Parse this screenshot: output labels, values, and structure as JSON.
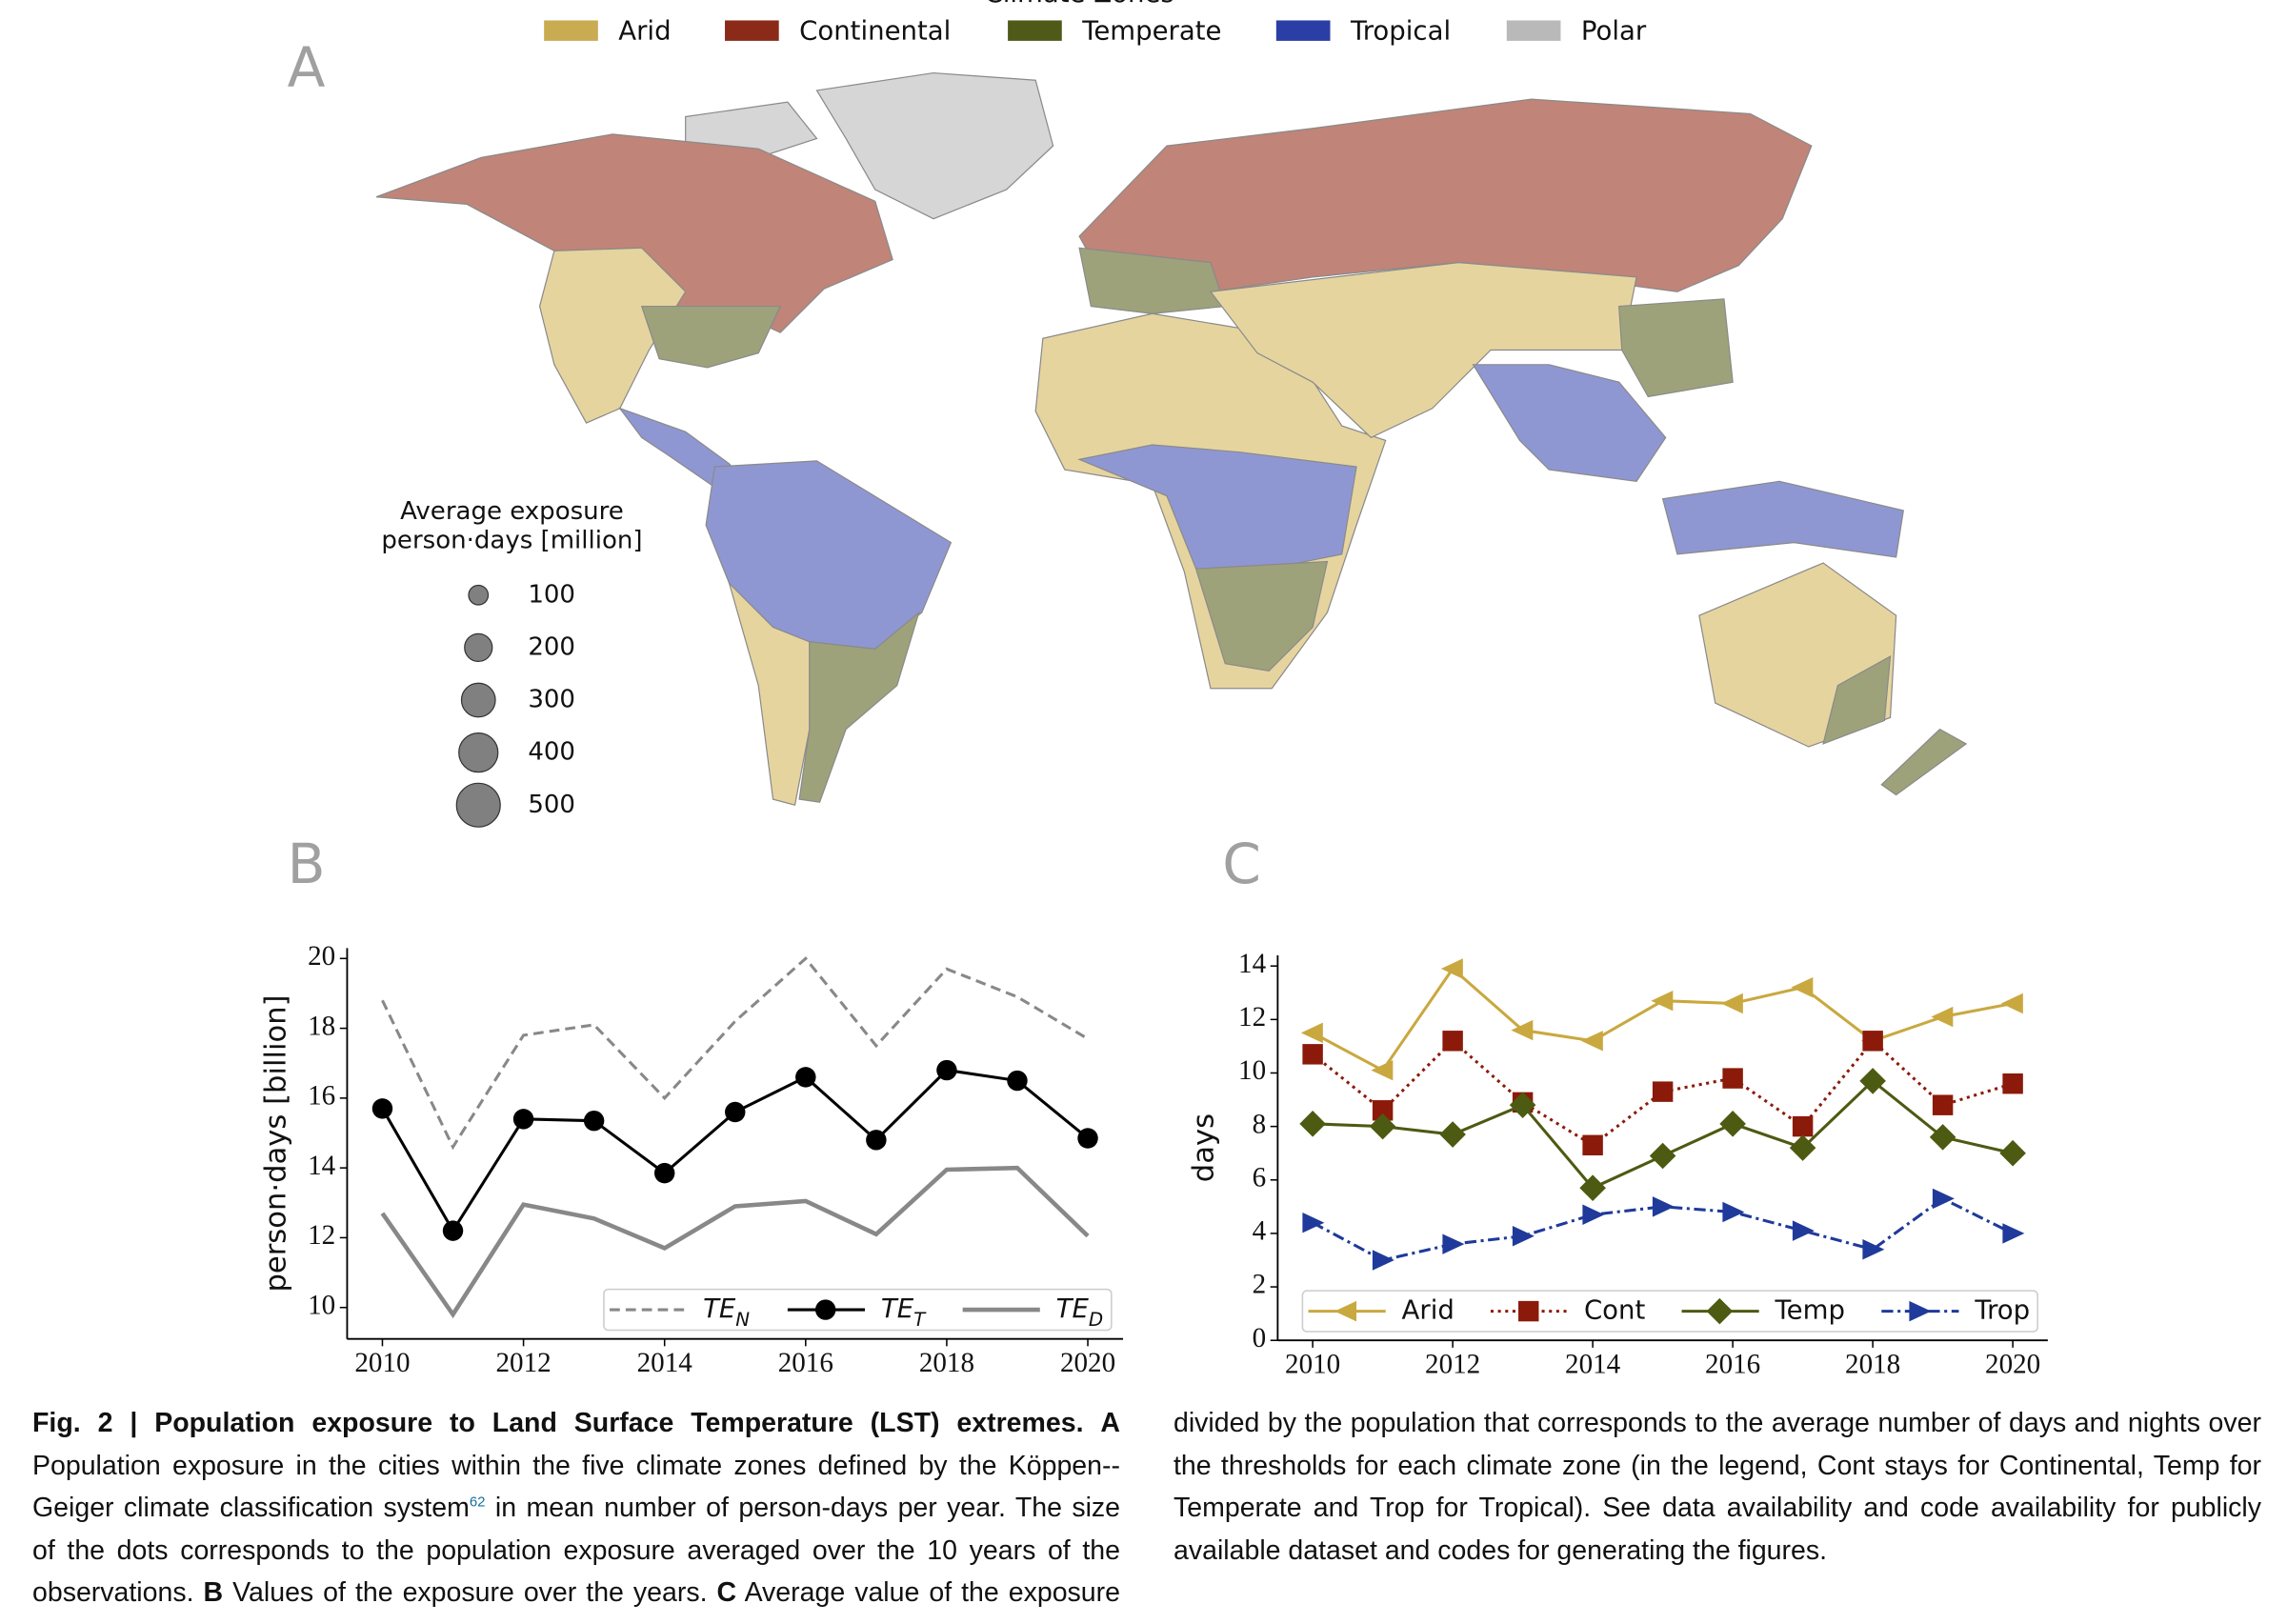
{
  "chart_data": [
    {
      "type": "map",
      "panel": "A",
      "legend_title": "Climate Zones",
      "zones": [
        {
          "name": "Arid",
          "color": "#c9ab52"
        },
        {
          "name": "Continental",
          "color": "#8b2a18"
        },
        {
          "name": "Temperate",
          "color": "#4f5a18"
        },
        {
          "name": "Tropical",
          "color": "#2b3ea5"
        },
        {
          "name": "Polar",
          "color": "#b9b9b9"
        }
      ],
      "size_legend": {
        "title": [
          "Average exposure",
          "person·days [million]"
        ],
        "values": [
          100,
          200,
          300,
          400,
          500
        ]
      }
    },
    {
      "type": "line",
      "panel": "B",
      "ylabel": "person·days [billion]",
      "x": [
        2010,
        2011,
        2012,
        2013,
        2014,
        2015,
        2016,
        2017,
        2018,
        2019,
        2020
      ],
      "xlim": [
        2009.5,
        2020.5
      ],
      "xticks": [
        2010,
        2012,
        2014,
        2016,
        2018,
        2020
      ],
      "ylim": [
        9.1,
        20.3
      ],
      "yticks": [
        10,
        12,
        14,
        16,
        18,
        20
      ],
      "legend": "lower right",
      "series": [
        {
          "name": "TE_N",
          "color": "#888888",
          "style": "dashed",
          "marker": "none",
          "values": [
            18.8,
            14.6,
            17.8,
            18.1,
            16.0,
            18.2,
            20.0,
            17.5,
            19.7,
            18.9,
            17.7
          ]
        },
        {
          "name": "TE_T",
          "color": "#000000",
          "style": "solid",
          "marker": "circle",
          "values": [
            15.7,
            12.2,
            15.4,
            15.35,
            13.85,
            15.6,
            16.6,
            14.8,
            16.8,
            16.5,
            14.85
          ]
        },
        {
          "name": "TE_D",
          "color": "#888888",
          "style": "solid",
          "marker": "none",
          "values": [
            12.7,
            9.8,
            12.95,
            12.55,
            11.7,
            12.9,
            13.05,
            12.1,
            13.95,
            14.0,
            12.05
          ]
        }
      ]
    },
    {
      "type": "line",
      "panel": "C",
      "ylabel": "days",
      "x": [
        2010,
        2011,
        2012,
        2013,
        2014,
        2015,
        2016,
        2017,
        2018,
        2019,
        2020
      ],
      "xlim": [
        2009.5,
        2020.5
      ],
      "xticks": [
        2010,
        2012,
        2014,
        2016,
        2018,
        2020
      ],
      "ylim": [
        0,
        14.4
      ],
      "yticks": [
        0,
        2,
        4,
        6,
        8,
        10,
        12,
        14
      ],
      "legend": "lower center",
      "series": [
        {
          "name": "Arid",
          "color": "#c9a83f",
          "style": "solid",
          "marker": "triangle-left",
          "values": [
            11.5,
            10.1,
            13.9,
            11.6,
            11.2,
            12.7,
            12.6,
            13.2,
            11.2,
            12.1,
            12.6
          ]
        },
        {
          "name": "Cont",
          "color": "#8b1a0a",
          "style": "dotted",
          "marker": "square",
          "values": [
            10.7,
            8.6,
            11.2,
            8.9,
            7.3,
            9.3,
            9.8,
            8.0,
            11.2,
            8.8,
            9.6
          ]
        },
        {
          "name": "Temp",
          "color": "#4d5a12",
          "style": "solid",
          "marker": "diamond",
          "values": [
            8.1,
            8.0,
            7.7,
            8.8,
            5.7,
            6.9,
            8.1,
            7.2,
            9.7,
            7.6,
            7.0
          ]
        },
        {
          "name": "Trop",
          "color": "#1f3a9a",
          "style": "dashdot",
          "marker": "triangle-right",
          "values": [
            4.4,
            3.0,
            3.6,
            3.9,
            4.7,
            5.0,
            4.8,
            4.1,
            3.4,
            5.3,
            4.0
          ]
        }
      ]
    }
  ],
  "caption": {
    "title": "Fig. 2 | Population exposure to Land Surface Temperature (LST) extremes.",
    "a_label": "A",
    "a_text": "Population exposure in the cities within the five climate zones defined by the Köppen-- Geiger climate classification system",
    "a_ref": "62",
    "a_text2": "in mean number of person-days per year. The size of the dots corresponds to the population exposure averaged over the 10 years of the observations.",
    "b_label": "B",
    "b_text": "Values of the exposure over the years.",
    "c_label": "C",
    "c_text": "Average value of the exposure divided by the population that corresponds to the average number of days and nights over the thresholds for each climate zone (in the legend, Cont stays for Continental, Temp for Temperate and Trop for Tropical). See data availability and code availability for publicly available dataset and codes for generating the figures."
  }
}
